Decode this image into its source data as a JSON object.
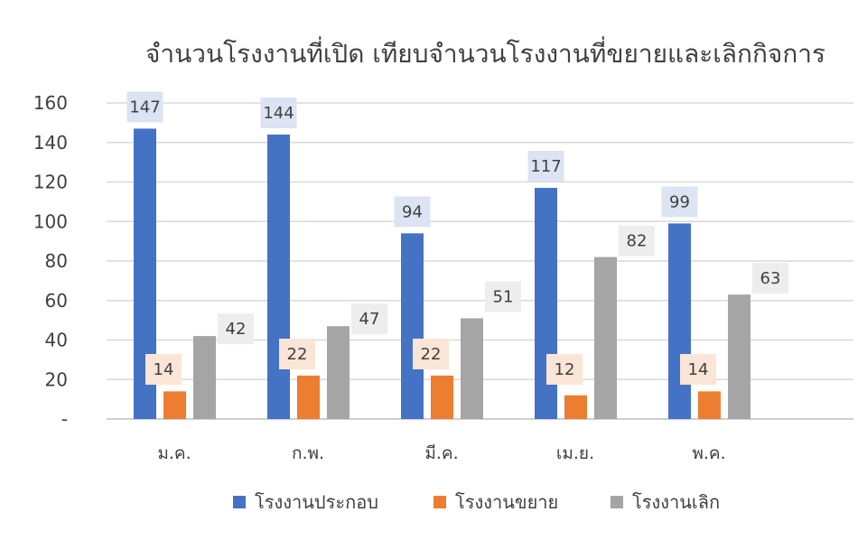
{
  "chart_data": {
    "type": "bar",
    "title": "จำนวนโรงงานที่เปิด เทียบจำนวนโรงงานที่ขยายและเลิกกิจการ",
    "categories": [
      "ม.ค.",
      "ก.พ.",
      "มี.ค.",
      "เม.ย.",
      "พ.ค."
    ],
    "series": [
      {
        "name": "โรงงานประกอบ",
        "values": [
          147,
          144,
          94,
          117,
          99
        ],
        "color": "#4472C4",
        "label_bg": "#DCE3F2"
      },
      {
        "name": "โรงงานขยาย",
        "values": [
          14,
          22,
          22,
          12,
          14
        ],
        "color": "#ED7D31",
        "label_bg": "#FBE5D6"
      },
      {
        "name": "โรงงานเลิก",
        "values": [
          42,
          47,
          51,
          82,
          63
        ],
        "color": "#A5A5A5",
        "label_bg": "#EDEDED"
      }
    ],
    "yticks": [
      "-",
      "20",
      "40",
      "60",
      "80",
      "100",
      "120",
      "140",
      "160"
    ],
    "ylim": [
      0,
      160
    ],
    "grid": true,
    "legend": "bottom",
    "gridline_color": "#D9D9D9",
    "text_color": "#404040"
  }
}
